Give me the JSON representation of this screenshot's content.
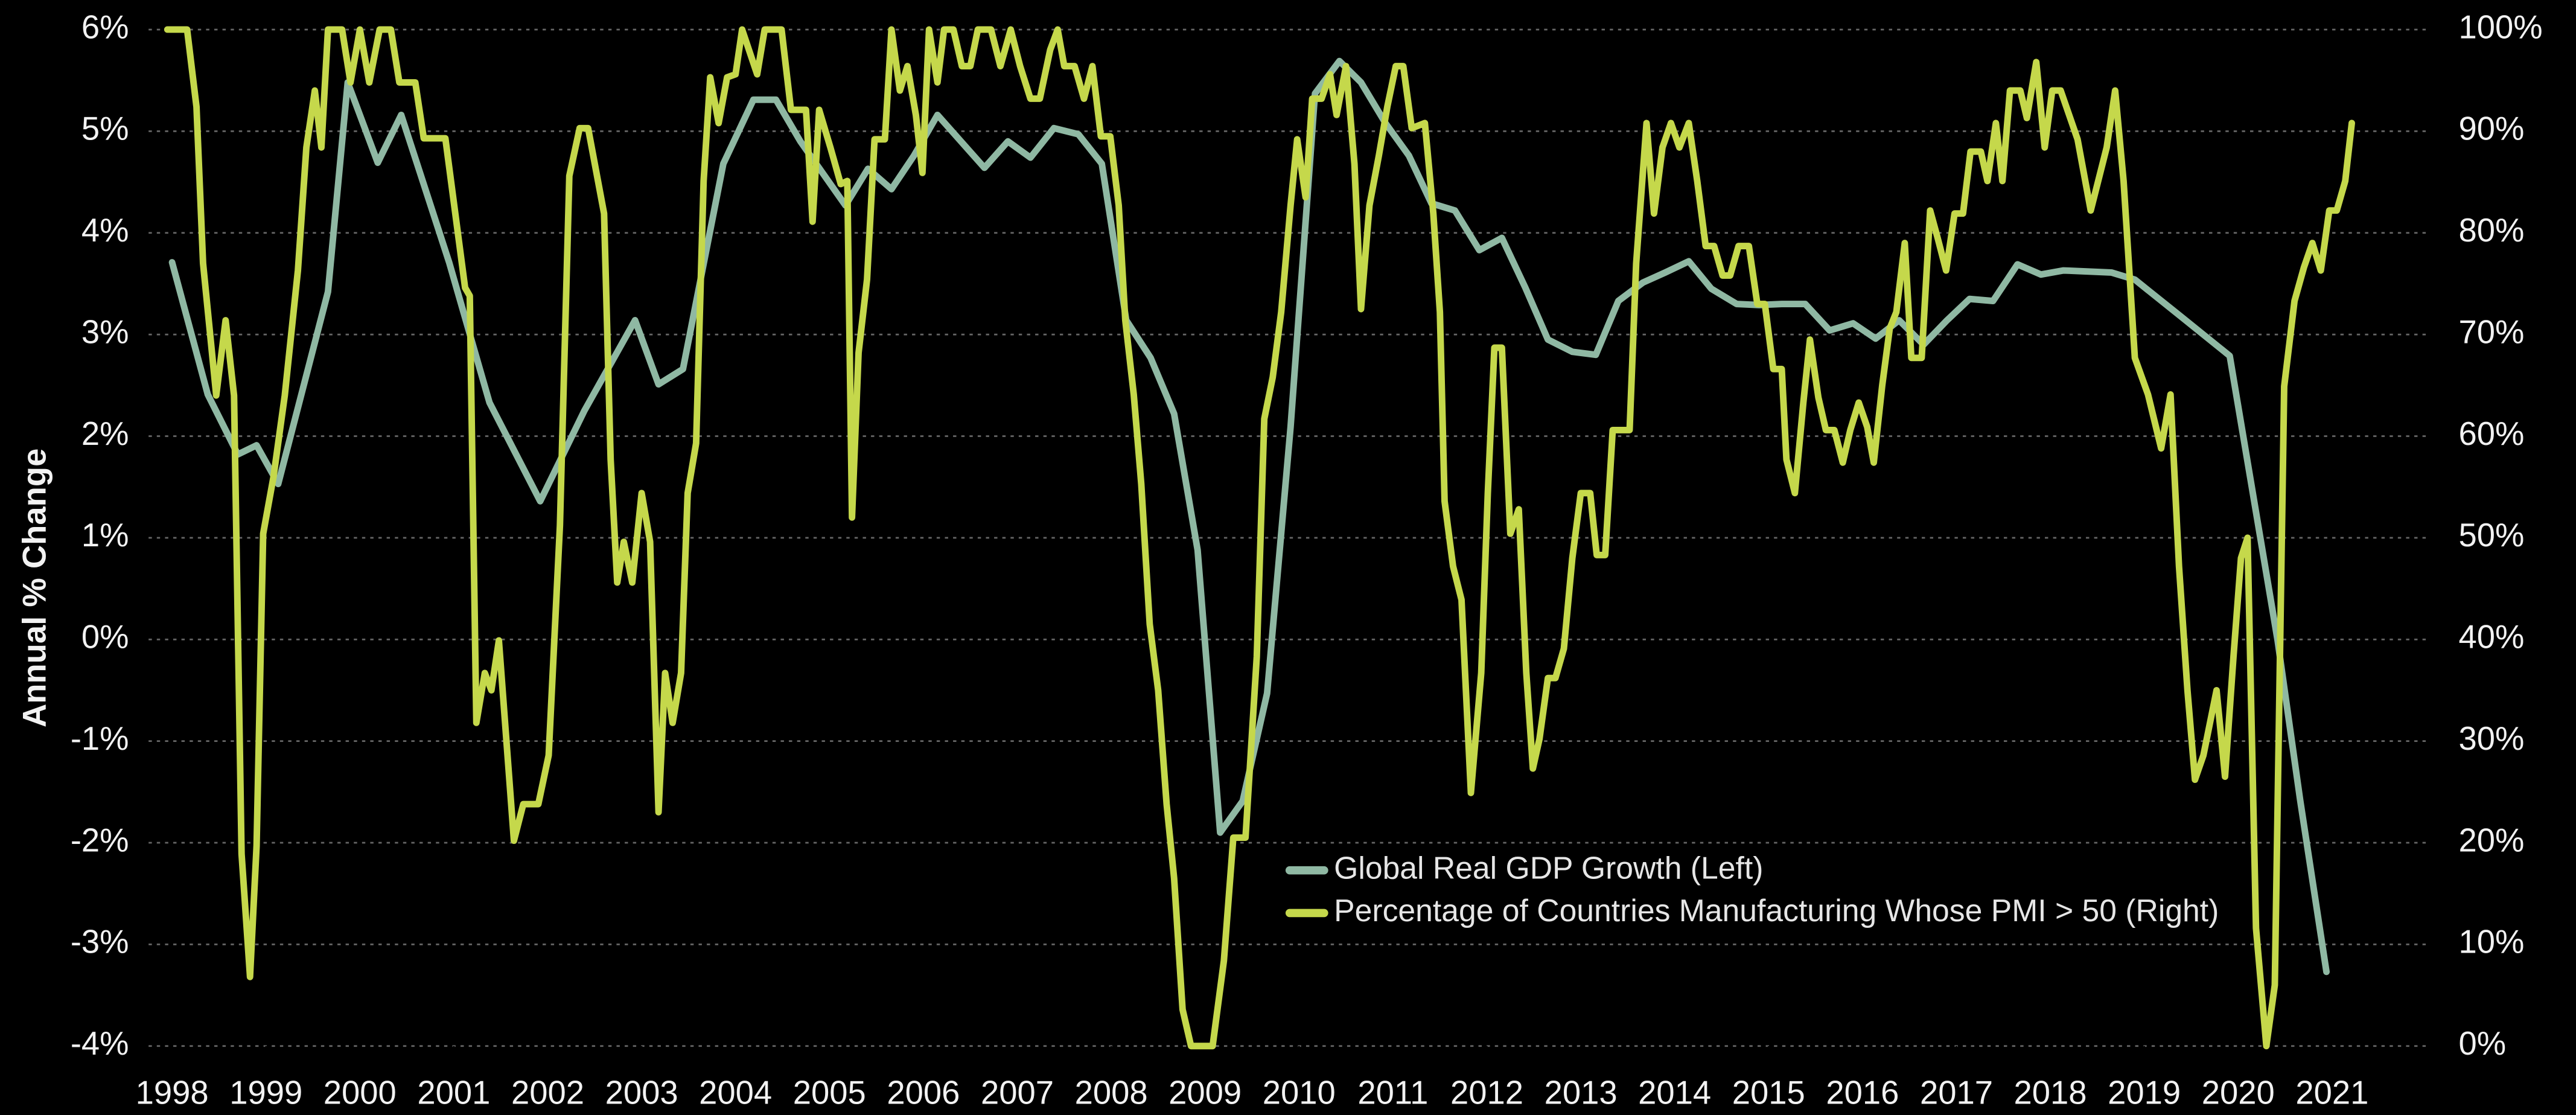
{
  "chart_data": {
    "type": "line",
    "y_axis_label": "Annual % Change",
    "legend": "lower-center",
    "grid": true,
    "xlim": [
      1997.75,
      2022.05
    ],
    "xticks": [
      1998,
      1999,
      2000,
      2001,
      2002,
      2003,
      2004,
      2005,
      2006,
      2007,
      2008,
      2009,
      2010,
      2011,
      2012,
      2013,
      2014,
      2015,
      2016,
      2017,
      2018,
      2019,
      2020,
      2021
    ],
    "ylim": [
      -4,
      6
    ],
    "yticks": [
      {
        "value": 6,
        "label": "6%"
      },
      {
        "value": 5,
        "label": "5%"
      },
      {
        "value": 4,
        "label": "4%"
      },
      {
        "value": 3,
        "label": "3%"
      },
      {
        "value": 2,
        "label": "2%"
      },
      {
        "value": 1,
        "label": "1%"
      },
      {
        "value": 0,
        "label": "0%"
      },
      {
        "value": -1,
        "label": "-1%"
      },
      {
        "value": -2,
        "label": "-2%"
      },
      {
        "value": -3,
        "label": "-3%"
      },
      {
        "value": -4,
        "label": "-4%"
      }
    ],
    "y2lim": [
      0,
      100
    ],
    "y2ticks": [
      {
        "value": 100,
        "label": "100%"
      },
      {
        "value": 90,
        "label": "90%"
      },
      {
        "value": 80,
        "label": "80%"
      },
      {
        "value": 70,
        "label": "70%"
      },
      {
        "value": 60,
        "label": "60%"
      },
      {
        "value": 50,
        "label": "50%"
      },
      {
        "value": 40,
        "label": "40%"
      },
      {
        "value": 30,
        "label": "30%"
      },
      {
        "value": 20,
        "label": "20%"
      },
      {
        "value": 10,
        "label": "10%"
      },
      {
        "value": 0,
        "label": "0%"
      }
    ],
    "series": [
      {
        "name": "Global Real GDP Growth (Left)",
        "color": "#8fb8a3",
        "axis": "y",
        "x": [
          1998.0,
          1998.38,
          1998.7,
          1998.9,
          1999.13,
          1999.66,
          1999.87,
          2000.19,
          2000.44,
          2000.95,
          2001.38,
          2001.92,
          2002.39,
          2002.93,
          2003.18,
          2003.44,
          2003.87,
          2004.19,
          2004.43,
          2004.69,
          2005.17,
          2005.41,
          2005.66,
          2005.9,
          2006.15,
          2006.65,
          2006.9,
          2007.14,
          2007.39,
          2007.65,
          2007.9,
          2008.16,
          2008.42,
          2008.67,
          2008.92,
          2009.16,
          2009.4,
          2009.66,
          2009.91,
          2010.17,
          2010.43,
          2010.66,
          2010.92,
          2011.17,
          2011.41,
          2011.66,
          2011.92,
          2012.16,
          2012.41,
          2012.65,
          2012.91,
          2013.16,
          2013.4,
          2013.66,
          2013.9,
          2014.15,
          2014.39,
          2014.66,
          2014.9,
          2015.14,
          2015.39,
          2015.65,
          2015.9,
          2016.14,
          2016.39,
          2016.65,
          2016.9,
          2017.14,
          2017.39,
          2017.65,
          2017.9,
          2018.14,
          2018.65,
          2018.9,
          2019.4,
          2019.91,
          2020.42,
          2020.66,
          2020.94
        ],
        "values": [
          3.71,
          2.41,
          1.82,
          1.91,
          1.53,
          3.42,
          5.48,
          4.69,
          5.16,
          3.71,
          2.33,
          1.36,
          2.25,
          3.14,
          2.51,
          2.66,
          4.68,
          5.31,
          5.31,
          4.9,
          4.27,
          4.63,
          4.43,
          4.76,
          5.16,
          4.64,
          4.9,
          4.74,
          5.03,
          4.97,
          4.68,
          3.14,
          2.77,
          2.22,
          0.88,
          -1.9,
          -1.59,
          -0.53,
          2.09,
          5.37,
          5.69,
          5.48,
          5.08,
          4.76,
          4.29,
          4.22,
          3.83,
          3.95,
          3.46,
          2.95,
          2.83,
          2.8,
          3.33,
          3.51,
          3.61,
          3.72,
          3.45,
          3.3,
          3.29,
          3.3,
          3.3,
          3.04,
          3.11,
          2.96,
          3.14,
          2.9,
          3.14,
          3.35,
          3.33,
          3.69,
          3.59,
          3.63,
          3.61,
          3.54,
          3.17,
          2.79,
          -0.01,
          -1.58,
          -3.27
        ]
      },
      {
        "name": "Percentage of Countries Manufacturing Whose PMI > 50 (Right)",
        "color": "#c5d84b",
        "axis": "y2",
        "x": [
          1997.95,
          1998.16,
          1998.26,
          1998.33,
          1998.47,
          1998.57,
          1998.66,
          1998.74,
          1998.83,
          1998.9,
          1998.97,
          1999.08,
          1999.2,
          1999.34,
          1999.43,
          1999.52,
          1999.59,
          1999.66,
          1999.81,
          1999.9,
          2000.0,
          2000.1,
          2000.21,
          2000.33,
          2000.42,
          2000.59,
          2000.68,
          2000.91,
          2001.12,
          2001.17,
          2001.24,
          2001.33,
          2001.4,
          2001.48,
          2001.64,
          2001.74,
          2001.9,
          2002.01,
          2002.13,
          2002.23,
          2002.34,
          2002.43,
          2002.6,
          2002.67,
          2002.74,
          2002.81,
          2002.9,
          2003.0,
          2003.09,
          2003.18,
          2003.25,
          2003.33,
          2003.42,
          2003.49,
          2003.58,
          2003.66,
          2003.73,
          2003.82,
          2003.91,
          2004.0,
          2004.07,
          2004.23,
          2004.31,
          2004.49,
          2004.59,
          2004.75,
          2004.82,
          2004.89,
          2005.01,
          2005.12,
          2005.19,
          2005.24,
          2005.31,
          2005.4,
          2005.48,
          2005.59,
          2005.66,
          2005.75,
          2005.83,
          2005.92,
          2005.99,
          2006.06,
          2006.15,
          2006.22,
          2006.32,
          2006.41,
          2006.5,
          2006.58,
          2006.72,
          2006.82,
          2006.93,
          2007.03,
          2007.14,
          2007.24,
          2007.35,
          2007.43,
          2007.5,
          2007.61,
          2007.71,
          2007.8,
          2007.89,
          2007.99,
          2008.08,
          2008.15,
          2008.24,
          2008.32,
          2008.41,
          2008.5,
          2008.59,
          2008.67,
          2008.76,
          2008.85,
          2009.08,
          2009.2,
          2009.3,
          2009.43,
          2009.55,
          2009.63,
          2009.72,
          2009.81,
          2009.91,
          2009.98,
          2010.07,
          2010.14,
          2010.24,
          2010.33,
          2010.4,
          2010.5,
          2010.59,
          2010.66,
          2010.75,
          2010.85,
          2010.94,
          2011.03,
          2011.11,
          2011.2,
          2011.34,
          2011.43,
          2011.5,
          2011.55,
          2011.64,
          2011.73,
          2011.83,
          2011.94,
          2012.01,
          2012.08,
          2012.16,
          2012.25,
          2012.34,
          2012.42,
          2012.49,
          2012.56,
          2012.65,
          2012.73,
          2012.82,
          2012.91,
          2013.0,
          2013.1,
          2013.17,
          2013.26,
          2013.34,
          2013.4,
          2013.52,
          2013.59,
          2013.7,
          2013.78,
          2013.87,
          2013.96,
          2014.05,
          2014.15,
          2014.24,
          2014.33,
          2014.42,
          2014.51,
          2014.59,
          2014.68,
          2014.79,
          2014.88,
          2014.96,
          2015.05,
          2015.14,
          2015.19,
          2015.28,
          2015.37,
          2015.44,
          2015.53,
          2015.61,
          2015.7,
          2015.79,
          2015.87,
          2015.96,
          2016.05,
          2016.12,
          2016.21,
          2016.29,
          2016.36,
          2016.45,
          2016.52,
          2016.63,
          2016.72,
          2016.8,
          2016.89,
          2016.98,
          2017.07,
          2017.15,
          2017.26,
          2017.33,
          2017.42,
          2017.49,
          2017.57,
          2017.68,
          2017.75,
          2017.85,
          2017.94,
          2018.02,
          2018.11,
          2018.29,
          2018.43,
          2018.6,
          2018.69,
          2018.78,
          2018.9,
          2019.04,
          2019.18,
          2019.28,
          2019.37,
          2019.46,
          2019.54,
          2019.63,
          2019.77,
          2019.86,
          2019.95,
          2020.03,
          2020.1,
          2020.19,
          2020.3,
          2020.39,
          2020.49,
          2020.6,
          2020.7,
          2020.79,
          2020.88,
          2020.97,
          2021.05,
          2021.14,
          2021.21
        ],
        "values": [
          100,
          100,
          92.4,
          77,
          64,
          71.4,
          64,
          18.9,
          6.8,
          19.7,
          50.4,
          56,
          64,
          76.3,
          88.4,
          94,
          88.4,
          100,
          100,
          94.8,
          100,
          94.8,
          100,
          100,
          94.8,
          94.8,
          89.3,
          89.3,
          74.6,
          73.8,
          31.8,
          36.7,
          35,
          39.9,
          20.2,
          23.8,
          23.8,
          28.6,
          51.2,
          85.6,
          90.3,
          90.3,
          81.9,
          57.7,
          45.6,
          49.6,
          45.6,
          54.4,
          49.6,
          23,
          36.7,
          31.8,
          36.7,
          54.4,
          59.3,
          85.1,
          95.3,
          90.8,
          95.3,
          95.6,
          100,
          95.6,
          100,
          100,
          92.1,
          92.1,
          81.1,
          92.1,
          88.4,
          84.8,
          85.1,
          52,
          68.2,
          75.4,
          89.2,
          89.2,
          100,
          94,
          96.4,
          91.6,
          85.9,
          100,
          94.8,
          100,
          100,
          96.4,
          96.4,
          100,
          100,
          96.4,
          100,
          96.4,
          93.2,
          93.2,
          98,
          100,
          96.4,
          96.4,
          93.2,
          96.4,
          89.5,
          89.5,
          82.7,
          71.4,
          64.1,
          55.3,
          41.5,
          35,
          23.8,
          16.5,
          3.6,
          0,
          0,
          8.4,
          20.5,
          20.5,
          38.3,
          61.7,
          65.8,
          72.2,
          82.7,
          89.2,
          83.5,
          93.2,
          93.2,
          95.6,
          91.6,
          96.4,
          86.8,
          72.5,
          82.7,
          87.6,
          92.4,
          96.4,
          96.4,
          90.3,
          90.8,
          81.9,
          72.2,
          53.6,
          47.2,
          43.9,
          24.9,
          36.7,
          54.4,
          68.7,
          68.7,
          50.4,
          52.8,
          36.7,
          27.3,
          30.2,
          36.2,
          36.2,
          39.1,
          48,
          54.4,
          54.4,
          48.3,
          48.3,
          60.6,
          60.6,
          60.6,
          77,
          90.8,
          81.9,
          88.4,
          90.8,
          88.4,
          90.8,
          85.1,
          78.7,
          78.7,
          75.8,
          75.8,
          78.7,
          78.7,
          73,
          73,
          66.6,
          66.6,
          57.7,
          54.4,
          63.3,
          69.5,
          63.8,
          60.6,
          60.6,
          57.4,
          60.6,
          63.3,
          60.9,
          57.4,
          65,
          70.6,
          72.2,
          79,
          67.7,
          67.7,
          82.2,
          79.5,
          76.3,
          81.9,
          81.9,
          88,
          88,
          85.1,
          90.8,
          85.1,
          94,
          94,
          91.3,
          96.8,
          88.4,
          94,
          94,
          89.2,
          82.2,
          88.4,
          94,
          85.1,
          67.7,
          64.1,
          58.8,
          64.1,
          47.2,
          35,
          26.2,
          28.6,
          35,
          26.5,
          38.3,
          48,
          50,
          11.6,
          0,
          6,
          64.9,
          73.3,
          76.6,
          79,
          76.3,
          82.2,
          82.2,
          85.1,
          90.8
        ]
      }
    ]
  }
}
